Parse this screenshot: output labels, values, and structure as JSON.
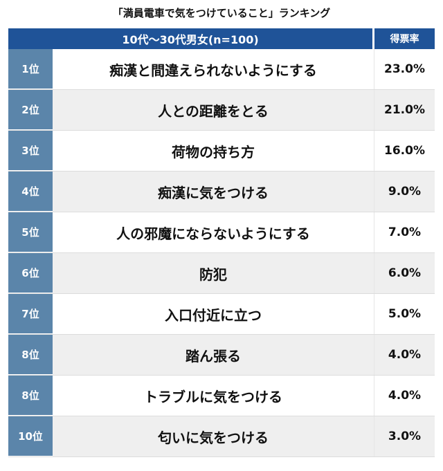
{
  "title": "「満員電車で気をつけていること」ランキング",
  "header": {
    "group": "10代〜30代男女(n=100)",
    "rate": "得票率"
  },
  "colors": {
    "header": "#1f5398",
    "rank": "#5b85aa",
    "stripe": "#efefef"
  },
  "chart_data": {
    "type": "table",
    "columns": [
      "",
      "10代〜30代男女(n=100)",
      "得票率"
    ],
    "rows": [
      {
        "rank": "1位",
        "item": "痴漢と間違えられないようにする",
        "rate": "23.0%"
      },
      {
        "rank": "2位",
        "item": "人との距離をとる",
        "rate": "21.0%"
      },
      {
        "rank": "3位",
        "item": "荷物の持ち方",
        "rate": "16.0%"
      },
      {
        "rank": "4位",
        "item": "痴漢に気をつける",
        "rate": "9.0%"
      },
      {
        "rank": "5位",
        "item": "人の邪魔にならないようにする",
        "rate": "7.0%"
      },
      {
        "rank": "6位",
        "item": "防犯",
        "rate": "6.0%"
      },
      {
        "rank": "7位",
        "item": "入口付近に立つ",
        "rate": "5.0%"
      },
      {
        "rank": "8位",
        "item": "踏ん張る",
        "rate": "4.0%"
      },
      {
        "rank": "8位",
        "item": "トラブルに気をつける",
        "rate": "4.0%"
      },
      {
        "rank": "10位",
        "item": "匂いに気をつける",
        "rate": "3.0%"
      }
    ]
  }
}
